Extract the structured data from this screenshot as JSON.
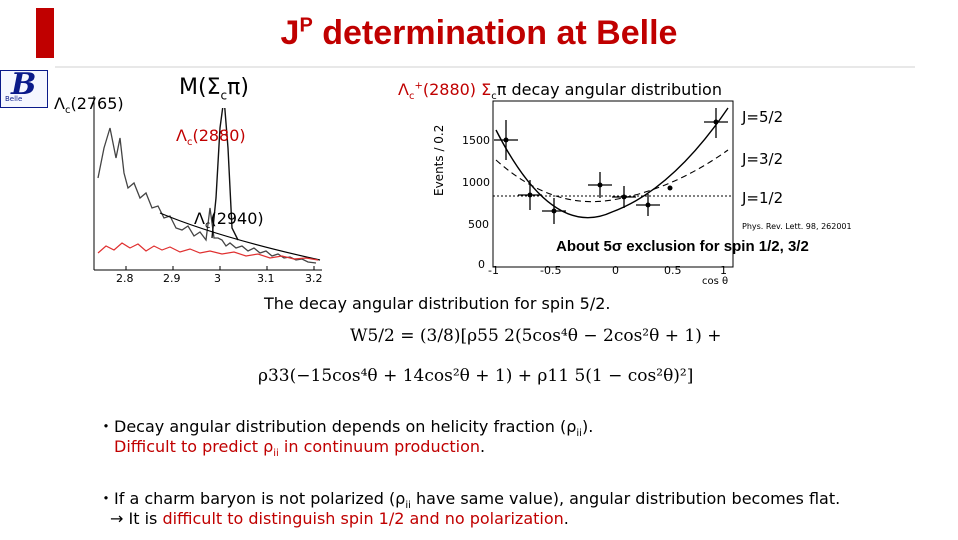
{
  "title": {
    "superscript_j": "J",
    "superscript_p": "P",
    "rest": " determination at Belle"
  },
  "logo": {
    "letter": "B",
    "text": "Belle"
  },
  "left_plot": {
    "mass_label": "M(Σ",
    "mass_sub": "c",
    "mass_close": "π)",
    "lc2765": "Λ",
    "lc2765_sub": "c",
    "lc2765_mass": "(2765)",
    "lc2880": "Λ",
    "lc2880_sub": "c",
    "lc2880_mass": "(2880)",
    "lc2940": "Λ",
    "lc2940_sub": "c",
    "lc2940_mass": "(2940)",
    "x_ticks": [
      "2.8",
      "2.9",
      "3",
      "3.1",
      "3.2"
    ]
  },
  "right_plot": {
    "heading_pre": "Λ",
    "heading_sub": "c",
    "heading_sup": "+",
    "heading_mid": "(2880) Σ",
    "heading_sub2": "c",
    "heading_post": "π decay angular distribution",
    "y_label": "Events / 0.2",
    "y_ticks": [
      "1500",
      "1000",
      "500",
      "0"
    ],
    "x_ticks": [
      "-1",
      "-0.5",
      "0",
      "0.5",
      "1"
    ],
    "x_label": "cos θ",
    "j52": "J=5/2",
    "j32": "J=3/2",
    "j12": "J=1/2",
    "reference": "Phys. Rev. Lett. 98, 262001",
    "exclusion": "About 5σ exclusion for spin 1/2, 3/2"
  },
  "formula": {
    "intro": "The decay angular distribution for spin 5/2.",
    "line1": "W5/2 = (3/8)[ρ55 2(5cos⁴θ − 2cos²θ + 1) +",
    "line2": "ρ33(−15cos⁴θ + 14cos²θ + 1) + ρ11 5(1 − cos²θ)²]"
  },
  "bullets": [
    {
      "marker": "・",
      "text": "Decay angular distribution depends on helicity fraction (ρ",
      "sub": "ii",
      "tail": ").",
      "red_text": "Difficult to predict ρ",
      "red_sub": "ii",
      "red_tail": " in continuum production",
      "end": "."
    },
    {
      "marker": "・",
      "text": "If a charm baryon is not polarized (ρ",
      "sub": "ii",
      "tail": " have same value), angular distribution becomes flat.",
      "arrow": "→",
      "pre": " It is ",
      "red_text": "difficult to distinguish spin 1/2 and no polarization",
      "end": "."
    }
  ]
}
